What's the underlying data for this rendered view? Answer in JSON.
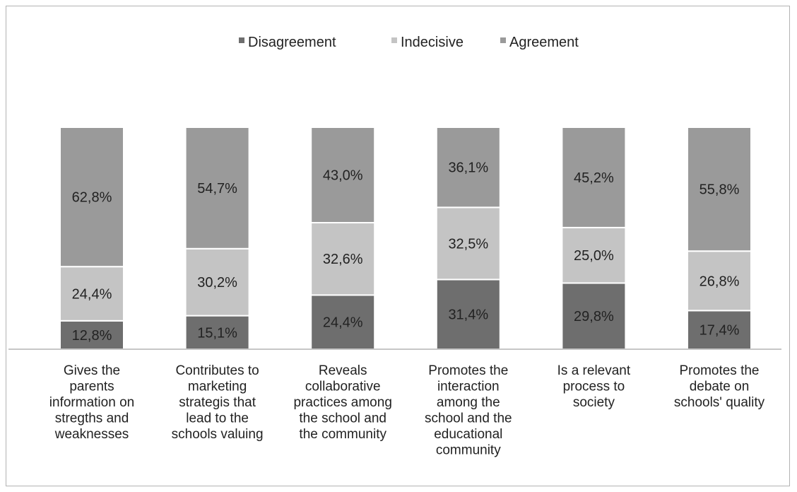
{
  "chart_data": {
    "type": "bar",
    "stacked": true,
    "percent_stacked": true,
    "legend_position": "top",
    "grid": false,
    "ylim": [
      0,
      100
    ],
    "categories": [
      "Gives the parents information on stregths and weaknesses",
      "Contributes to marketing strategis that lead to the schools valuing",
      "Reveals collaborative practices among the school and the community",
      "Promotes the interaction among the school and the educational community",
      "Is a relevant process to society",
      "Promotes the debate on schools' quality"
    ],
    "category_lines": [
      [
        "Gives the",
        "parents",
        "information on",
        "stregths and",
        "weaknesses"
      ],
      [
        "Contributes to",
        "marketing",
        "strategis that",
        "lead to the",
        "schools valuing"
      ],
      [
        "Reveals",
        "collaborative",
        "practices among",
        "the school and",
        "the community"
      ],
      [
        "Promotes the",
        "interaction",
        "among the",
        "school and the",
        "educational",
        "community"
      ],
      [
        "Is a relevant",
        "process to",
        "society"
      ],
      [
        "Promotes the",
        "debate on",
        "schools' quality"
      ]
    ],
    "series": [
      {
        "name": "Disagreement",
        "color": "#6e6e6e",
        "values": [
          12.8,
          15.1,
          24.4,
          31.4,
          29.8,
          17.4
        ],
        "labels": [
          "12,8%",
          "15,1%",
          "24,4%",
          "31,4%",
          "29,8%",
          "17,4%"
        ]
      },
      {
        "name": "Indecisive",
        "color": "#c4c4c4",
        "values": [
          24.4,
          30.2,
          32.6,
          32.5,
          25.0,
          26.8
        ],
        "labels": [
          "24,4%",
          "30,2%",
          "32,6%",
          "32,5%",
          "25,0%",
          "26,8%"
        ]
      },
      {
        "name": "Agreement",
        "color": "#9a9a9a",
        "values": [
          62.8,
          54.7,
          43.0,
          36.1,
          45.2,
          55.8
        ],
        "labels": [
          "62,8%",
          "54,7%",
          "43,0%",
          "36,1%",
          "45,2%",
          "55,8%"
        ]
      }
    ]
  }
}
